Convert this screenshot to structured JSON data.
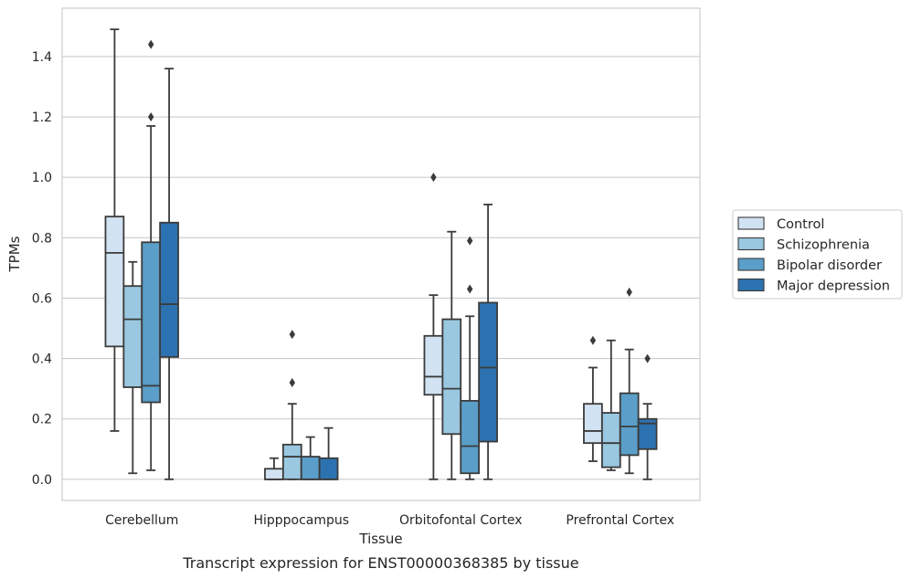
{
  "caption": "Transcript expression for ENST00000368385 by tissue",
  "chart_data": {
    "type": "box",
    "xlabel": "Tissue",
    "ylabel": "TPMs",
    "ylim": [
      -0.07,
      1.56
    ],
    "yticks": [
      0.0,
      0.2,
      0.4,
      0.6,
      0.8,
      1.0,
      1.2,
      1.4
    ],
    "ytick_labels": [
      "0.0",
      "0.2",
      "0.4",
      "0.6",
      "0.8",
      "1.0",
      "1.2",
      "1.4"
    ],
    "grid": "horizontal",
    "legend_position": "right",
    "categories": [
      "Cerebellum",
      "Hipppocampus",
      "Orbitofontal Cortex",
      "Prefrontal Cortex"
    ],
    "series": [
      {
        "name": "Control",
        "color": "#d1e2f2",
        "boxes": [
          {
            "whisker_low": 0.16,
            "q1": 0.44,
            "median": 0.75,
            "q3": 0.87,
            "whisker_high": 1.49,
            "outliers": []
          },
          {
            "whisker_low": 0.0,
            "q1": 0.0,
            "median": 0.0,
            "q3": 0.035,
            "whisker_high": 0.07,
            "outliers": []
          },
          {
            "whisker_low": 0.0,
            "q1": 0.28,
            "median": 0.34,
            "q3": 0.475,
            "whisker_high": 0.61,
            "outliers": [
              1.0
            ]
          },
          {
            "whisker_low": 0.06,
            "q1": 0.12,
            "median": 0.16,
            "q3": 0.25,
            "whisker_high": 0.37,
            "outliers": [
              0.46
            ]
          }
        ]
      },
      {
        "name": "Schizophrenia",
        "color": "#9ac8e0",
        "boxes": [
          {
            "whisker_low": 0.02,
            "q1": 0.305,
            "median": 0.53,
            "q3": 0.64,
            "whisker_high": 0.72,
            "outliers": []
          },
          {
            "whisker_low": 0.0,
            "q1": 0.0,
            "median": 0.075,
            "q3": 0.115,
            "whisker_high": 0.25,
            "outliers": [
              0.32,
              0.48
            ]
          },
          {
            "whisker_low": 0.0,
            "q1": 0.15,
            "median": 0.3,
            "q3": 0.53,
            "whisker_high": 0.82,
            "outliers": []
          },
          {
            "whisker_low": 0.03,
            "q1": 0.04,
            "median": 0.12,
            "q3": 0.22,
            "whisker_high": 0.46,
            "outliers": []
          }
        ]
      },
      {
        "name": "Bipolar disorder",
        "color": "#5a9ec9",
        "boxes": [
          {
            "whisker_low": 0.03,
            "q1": 0.255,
            "median": 0.31,
            "q3": 0.785,
            "whisker_high": 1.17,
            "outliers": [
              1.2,
              1.44
            ]
          },
          {
            "whisker_low": 0.0,
            "q1": 0.0,
            "median": 0.0,
            "q3": 0.075,
            "whisker_high": 0.14,
            "outliers": []
          },
          {
            "whisker_low": 0.0,
            "q1": 0.02,
            "median": 0.11,
            "q3": 0.26,
            "whisker_high": 0.54,
            "outliers": [
              0.63,
              0.79
            ]
          },
          {
            "whisker_low": 0.02,
            "q1": 0.08,
            "median": 0.175,
            "q3": 0.285,
            "whisker_high": 0.43,
            "outliers": [
              0.62
            ]
          }
        ]
      },
      {
        "name": "Major depression",
        "color": "#2d72b0",
        "boxes": [
          {
            "whisker_low": 0.0,
            "q1": 0.405,
            "median": 0.58,
            "q3": 0.85,
            "whisker_high": 1.36,
            "outliers": []
          },
          {
            "whisker_low": 0.0,
            "q1": 0.0,
            "median": 0.0,
            "q3": 0.07,
            "whisker_high": 0.17,
            "outliers": []
          },
          {
            "whisker_low": 0.0,
            "q1": 0.125,
            "median": 0.37,
            "q3": 0.585,
            "whisker_high": 0.91,
            "outliers": []
          },
          {
            "whisker_low": 0.0,
            "q1": 0.1,
            "median": 0.185,
            "q3": 0.2,
            "whisker_high": 0.25,
            "outliers": [
              0.4
            ]
          }
        ]
      }
    ]
  }
}
